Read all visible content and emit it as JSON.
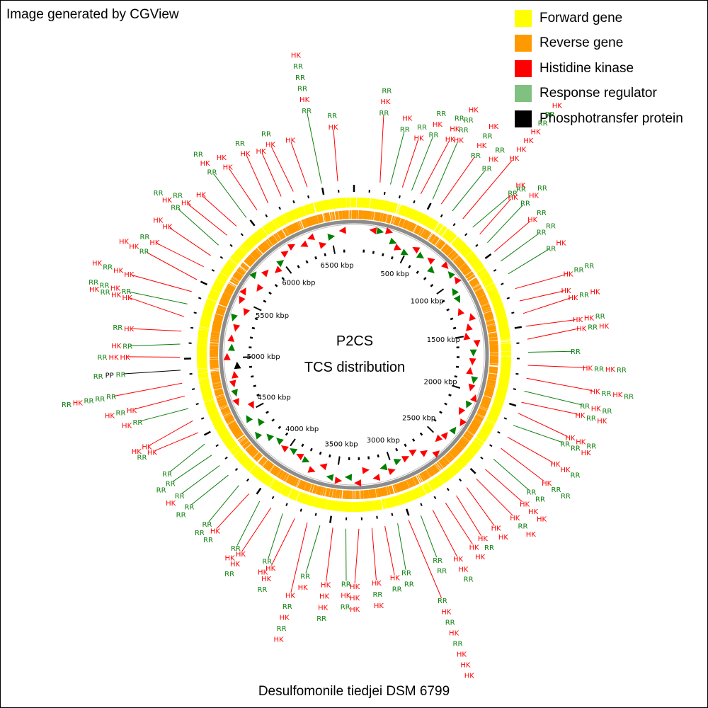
{
  "attribution": "Image generated by CGView",
  "legend": [
    {
      "label": "Forward gene",
      "color": "#ffff00"
    },
    {
      "label": "Reverse gene",
      "color": "#ff9900"
    },
    {
      "label": "Histidine kinase",
      "color": "#ff0000"
    },
    {
      "label": "Response regulator",
      "color": "#80c080"
    },
    {
      "label": "Phosphotransfer protein",
      "color": "#000000"
    }
  ],
  "map": {
    "title": "P2CS",
    "subtitle": "TCS distribution",
    "organism": "Desulfomonile tiedjei DSM 6799",
    "genome_length_kbp": 6700,
    "tick_labels": [
      "500 kbp",
      "1000 kbp",
      "1500 kbp",
      "2000 kbp",
      "2500 kbp",
      "3000 kbp",
      "3500 kbp",
      "4000 kbp",
      "4500 kbp",
      "5000 kbp",
      "5500 kbp",
      "6000 kbp",
      "6500 kbp"
    ],
    "tick_values_kbp": [
      500,
      1000,
      1500,
      2000,
      2500,
      3000,
      3500,
      4000,
      4500,
      5000,
      5500,
      6000,
      6500
    ],
    "feature_labels": {
      "histidine_kinase": "HK",
      "response_regulator": "RR",
      "phosphotransfer": "PP"
    },
    "colors": {
      "forward": "#ffff00",
      "reverse": "#ff9900",
      "hk": "#ff0000",
      "rr_marker": "#008000",
      "rr_line": "#108010",
      "pp": "#000000",
      "backbone": "#8c8c8c"
    },
    "tcs_features": [
      {
        "pos_kbp": 160,
        "type": "HK",
        "stack": [
          "RR",
          "HK",
          "RR"
        ],
        "len": 1.35
      },
      {
        "pos_kbp": 225,
        "type": "RR",
        "stack": [
          "RR",
          "HK"
        ],
        "len": 1.1
      },
      {
        "pos_kbp": 300,
        "type": "HK",
        "stack": [
          "HK",
          "RR"
        ],
        "len": 1.0
      },
      {
        "pos_kbp": 360,
        "type": "RR",
        "stack": [
          "RR",
          "HK",
          "RR"
        ],
        "len": 1.15
      },
      {
        "pos_kbp": 420,
        "type": "HK",
        "stack": [
          "HK",
          "HK",
          "RR"
        ],
        "len": 1.2
      },
      {
        "pos_kbp": 500,
        "type": "RR",
        "stack": [
          "HK",
          "RR",
          "RR",
          "HK"
        ],
        "len": 1.25
      },
      {
        "pos_kbp": 560,
        "type": "HK",
        "stack": [
          "RR",
          "HK",
          "RR",
          "HK"
        ],
        "len": 1.15
      },
      {
        "pos_kbp": 640,
        "type": "RR",
        "stack": [
          "RR",
          "HK",
          "RR"
        ],
        "len": 1.05
      },
      {
        "pos_kbp": 720,
        "type": "HK",
        "stack": [
          "HK",
          "HK",
          "HK",
          "HK",
          "RR",
          "RR",
          "HK"
        ],
        "len": 1.55
      },
      {
        "pos_kbp": 800,
        "type": "RR",
        "stack": [
          "RR",
          "HK"
        ],
        "len": 1.0
      },
      {
        "pos_kbp": 860,
        "type": "HK",
        "stack": [
          "HK",
          "RR"
        ],
        "len": 0.95
      },
      {
        "pos_kbp": 930,
        "type": "RR",
        "stack": [
          "RR",
          "HK",
          "RR"
        ],
        "len": 1.05
      },
      {
        "pos_kbp": 1000,
        "type": "HK",
        "stack": [
          "HK",
          "RR"
        ],
        "len": 0.95
      },
      {
        "pos_kbp": 1070,
        "type": "RR",
        "stack": [
          "RR",
          "RR"
        ],
        "len": 0.95
      },
      {
        "pos_kbp": 1160,
        "type": "RR",
        "stack": [
          "RR",
          "HK"
        ],
        "len": 0.95
      },
      {
        "pos_kbp": 1260,
        "type": "HK",
        "stack": [
          "HK",
          "RR",
          "RR"
        ],
        "len": 1.05
      },
      {
        "pos_kbp": 1340,
        "type": "HK",
        "stack": [
          "HK"
        ],
        "len": 0.9
      },
      {
        "pos_kbp": 1420,
        "type": "HK",
        "stack": [
          "HK",
          "RR",
          "HK"
        ],
        "len": 1.0
      },
      {
        "pos_kbp": 1500,
        "type": "HK",
        "stack": [
          "HK",
          "HK",
          "RR"
        ],
        "len": 1.0
      },
      {
        "pos_kbp": 1580,
        "type": "HK",
        "stack": [
          "HK",
          "RR",
          "HK"
        ],
        "len": 1.05
      },
      {
        "pos_kbp": 1660,
        "type": "RR",
        "stack": [
          "RR"
        ],
        "len": 0.9
      },
      {
        "pos_kbp": 1740,
        "type": "HK",
        "stack": [
          "HK",
          "RR",
          "HK",
          "RR"
        ],
        "len": 1.15
      },
      {
        "pos_kbp": 1820,
        "type": "HK",
        "stack": [
          "HK",
          "RR",
          "HK",
          "RR"
        ],
        "len": 1.35
      },
      {
        "pos_kbp": 1900,
        "type": "RR",
        "stack": [
          "RR",
          "HK",
          "RR"
        ],
        "len": 1.2
      },
      {
        "pos_kbp": 1970,
        "type": "HK",
        "stack": [
          "HK",
          "RR",
          "HK"
        ],
        "len": 1.15
      },
      {
        "pos_kbp": 2040,
        "type": "HK",
        "stack": [
          "HK",
          "HK",
          "RR"
        ],
        "len": 1.1
      },
      {
        "pos_kbp": 2120,
        "type": "RR",
        "stack": [
          "RR",
          "RR",
          "HK"
        ],
        "len": 1.05
      },
      {
        "pos_kbp": 2200,
        "type": "HK",
        "stack": [
          "HK",
          "HK",
          "RR"
        ],
        "len": 1.05
      },
      {
        "pos_kbp": 2280,
        "type": "HK",
        "stack": [
          "HK",
          "RR",
          "RR"
        ],
        "len": 1.1
      },
      {
        "pos_kbp": 2360,
        "type": "RR",
        "stack": [
          "RR",
          "RR"
        ],
        "len": 0.95
      },
      {
        "pos_kbp": 2440,
        "type": "HK",
        "stack": [
          "HK",
          "HK",
          "HK"
        ],
        "len": 1.0
      },
      {
        "pos_kbp": 2520,
        "type": "HK",
        "stack": [
          "HK",
          "RR",
          "HK"
        ],
        "len": 1.05
      },
      {
        "pos_kbp": 2600,
        "type": "HK",
        "stack": [
          "HK",
          "HK"
        ],
        "len": 0.95
      },
      {
        "pos_kbp": 2680,
        "type": "HK",
        "stack": [
          "HK",
          "RR"
        ],
        "len": 0.95
      },
      {
        "pos_kbp": 2760,
        "type": "HK",
        "stack": [
          "HK",
          "HK"
        ],
        "len": 1.0
      },
      {
        "pos_kbp": 2850,
        "type": "HK",
        "stack": [
          "HK",
          "HK",
          "RR"
        ],
        "len": 1.05
      },
      {
        "pos_kbp": 2930,
        "type": "RR",
        "stack": [
          "RR",
          "RR"
        ],
        "len": 0.9
      },
      {
        "pos_kbp": 3010,
        "type": "HK",
        "stack": [
          "RR",
          "HK",
          "RR",
          "HK",
          "RR",
          "HK",
          "HK",
          "HK"
        ],
        "len": 1.7
      },
      {
        "pos_kbp": 3080,
        "type": "RR",
        "stack": [
          "RR",
          "RR"
        ],
        "len": 0.95
      },
      {
        "pos_kbp": 3160,
        "type": "HK",
        "stack": [
          "HK",
          "RR"
        ],
        "len": 1.0
      },
      {
        "pos_kbp": 3240,
        "type": "HK",
        "stack": [
          "HK",
          "RR",
          "HK"
        ],
        "len": 1.05
      },
      {
        "pos_kbp": 3320,
        "type": "HK",
        "stack": [
          "HK",
          "HK",
          "HK"
        ],
        "len": 1.1
      },
      {
        "pos_kbp": 3400,
        "type": "RR",
        "stack": [
          "RR",
          "HK",
          "RR"
        ],
        "len": 1.05
      },
      {
        "pos_kbp": 3480,
        "type": "HK",
        "stack": [
          "HK",
          "HK",
          "HK",
          "RR"
        ],
        "len": 1.1
      },
      {
        "pos_kbp": 3560,
        "type": "RR",
        "stack": [
          "RR",
          "HK"
        ],
        "len": 1.0
      },
      {
        "pos_kbp": 3640,
        "type": "HK",
        "stack": [
          "HK",
          "RR",
          "HK",
          "RR",
          "HK"
        ],
        "len": 1.45
      },
      {
        "pos_kbp": 3720,
        "type": "HK",
        "stack": [
          "HK",
          "HK",
          "RR"
        ],
        "len": 1.05
      },
      {
        "pos_kbp": 3800,
        "type": "RR",
        "stack": [
          "RR",
          "HK"
        ],
        "len": 0.95
      },
      {
        "pos_kbp": 3880,
        "type": "HK",
        "stack": [
          "HK",
          "HK",
          "RR"
        ],
        "len": 1.05
      },
      {
        "pos_kbp": 3960,
        "type": "RR",
        "stack": [
          "RR",
          "HK"
        ],
        "len": 1.0
      },
      {
        "pos_kbp": 4040,
        "type": "HK",
        "stack": [
          "HK",
          "RR"
        ],
        "len": 0.95
      },
      {
        "pos_kbp": 4120,
        "type": "RR",
        "stack": [
          "RR",
          "RR"
        ],
        "len": 0.95
      },
      {
        "pos_kbp": 4210,
        "type": "RR",
        "stack": [
          "RR",
          "RR"
        ],
        "len": 0.95
      },
      {
        "pos_kbp": 4290,
        "type": "RR",
        "stack": [
          "RR",
          "HK"
        ],
        "len": 0.95
      },
      {
        "pos_kbp": 4370,
        "type": "RR",
        "stack": [
          "RR",
          "RR"
        ],
        "len": 0.95
      },
      {
        "pos_kbp": 4450,
        "type": "RR",
        "stack": [
          "RR"
        ],
        "len": 0.9
      },
      {
        "pos_kbp": 4530,
        "type": "HK",
        "stack": [
          "HK",
          "RR"
        ],
        "len": 0.95
      },
      {
        "pos_kbp": 4610,
        "type": "HK",
        "stack": [
          "HK",
          "HK"
        ],
        "len": 1.0
      },
      {
        "pos_kbp": 4690,
        "type": "RR",
        "stack": [
          "RR",
          "HK"
        ],
        "len": 1.0
      },
      {
        "pos_kbp": 4770,
        "type": "HK",
        "stack": [
          "HK",
          "RR",
          "HK"
        ],
        "len": 1.05
      },
      {
        "pos_kbp": 4850,
        "type": "HK",
        "stack": [
          "RR",
          "RR",
          "RR",
          "HK",
          "RR"
        ],
        "len": 1.4
      },
      {
        "pos_kbp": 4930,
        "type": "PP",
        "stack": [
          "RR",
          "PP",
          "RR"
        ],
        "len": 1.15
      },
      {
        "pos_kbp": 5010,
        "type": "HK",
        "stack": [
          "HK",
          "HK",
          "RR"
        ],
        "len": 1.05
      },
      {
        "pos_kbp": 5090,
        "type": "RR",
        "stack": [
          "RR",
          "HK"
        ],
        "len": 1.0
      },
      {
        "pos_kbp": 5170,
        "type": "HK",
        "stack": [
          "HK",
          "RR"
        ],
        "len": 1.0
      },
      {
        "pos_kbp": 5260,
        "type": "HK",
        "stack": [
          "HK",
          "HK",
          "RR",
          "HK"
        ],
        "len": 1.15
      },
      {
        "pos_kbp": 5340,
        "type": "RR",
        "stack": [
          "RR",
          "HK",
          "RR",
          "RR"
        ],
        "len": 1.2
      },
      {
        "pos_kbp": 5420,
        "type": "HK",
        "stack": [
          "HK",
          "HK",
          "RR",
          "HK"
        ],
        "len": 1.25
      },
      {
        "pos_kbp": 5500,
        "type": "HK",
        "stack": [
          "RR",
          "HK",
          "HK"
        ],
        "len": 1.15
      },
      {
        "pos_kbp": 5590,
        "type": "HK",
        "stack": [
          "HK",
          "RR"
        ],
        "len": 1.05
      },
      {
        "pos_kbp": 5670,
        "type": "HK",
        "stack": [
          "HK",
          "HK"
        ],
        "len": 1.0
      },
      {
        "pos_kbp": 5750,
        "type": "RR",
        "stack": [
          "RR",
          "HK",
          "RR"
        ],
        "len": 1.1
      },
      {
        "pos_kbp": 5830,
        "type": "HK",
        "stack": [
          "HK",
          "RR"
        ],
        "len": 1.0
      },
      {
        "pos_kbp": 5910,
        "type": "HK",
        "stack": [
          "HK"
        ],
        "len": 0.9
      },
      {
        "pos_kbp": 5990,
        "type": "RR",
        "stack": [
          "RR",
          "HK",
          "RR"
        ],
        "len": 1.1
      },
      {
        "pos_kbp": 6070,
        "type": "HK",
        "stack": [
          "HK",
          "HK"
        ],
        "len": 1.0
      },
      {
        "pos_kbp": 6150,
        "type": "HK",
        "stack": [
          "HK",
          "RR"
        ],
        "len": 1.05
      },
      {
        "pos_kbp": 6240,
        "type": "HK",
        "stack": [
          "HK"
        ],
        "len": 0.95
      },
      {
        "pos_kbp": 6320,
        "type": "HK",
        "stack": [
          "HK",
          "RR"
        ],
        "len": 1.0
      },
      {
        "pos_kbp": 6410,
        "type": "HK",
        "stack": [
          "HK"
        ],
        "len": 0.95
      },
      {
        "pos_kbp": 6500,
        "type": "RR",
        "stack": [
          "RR",
          "HK",
          "RR",
          "RR",
          "RR",
          "HK"
        ],
        "len": 1.45
      },
      {
        "pos_kbp": 6600,
        "type": "HK",
        "stack": [
          "HK",
          "RR"
        ],
        "len": 1.05
      }
    ]
  }
}
